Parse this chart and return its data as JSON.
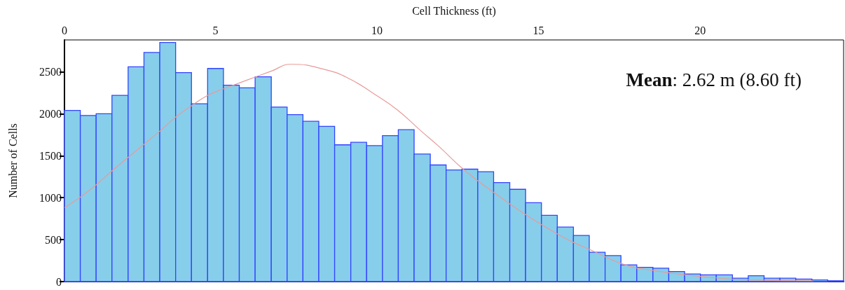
{
  "chart_data": {
    "type": "histogram",
    "xlabel": "Cell Thickness (ft)",
    "ylabel": "Number of Cells",
    "annotations": [
      "Mean: 2.62 m (8.60 ft)"
    ],
    "bins": [
      0.33,
      0.82,
      1.31,
      1.8,
      2.3,
      2.79,
      3.28,
      3.77,
      4.26,
      4.76,
      5.25,
      5.74,
      6.23,
      6.73,
      7.22,
      7.71,
      8.2,
      8.69,
      9.19,
      9.68,
      10.17,
      10.66,
      11.15,
      11.65,
      12.14,
      12.63,
      13.12,
      13.61,
      14.11,
      14.6,
      15.09,
      15.58,
      16.08,
      16.57,
      17.06,
      17.55,
      18.04,
      18.54,
      19.03,
      19.52,
      20.01,
      20.5,
      21.0,
      21.49,
      21.98,
      22.47,
      22.96,
      23.46,
      23.95,
      24.44
    ],
    "series": [
      {
        "color": "#87ceeb",
        "values": [
          2040,
          1980,
          2000,
          2220,
          2560,
          2730,
          2850,
          2490,
          2120,
          2540,
          2340,
          2310,
          2440,
          2080,
          1990,
          1910,
          1850,
          1630,
          1660,
          1620,
          1740,
          1810,
          1520,
          1390,
          1330,
          1340,
          1310,
          1180,
          1100,
          940,
          790,
          650,
          550,
          350,
          310,
          200,
          170,
          160,
          120,
          90,
          80,
          80,
          40,
          70,
          40,
          40,
          30,
          20,
          10
        ]
      },
      {
        "type": "line",
        "color": "#e89a9a",
        "x": [
          0.33,
          0.83,
          1.33,
          1.83,
          2.3,
          3.3,
          3.8,
          4.28,
          4.77,
          5.27,
          5.76,
          6.25,
          6.74,
          7.34,
          8.46,
          9.18,
          9.9,
          10.62,
          11.35,
          11.92,
          12.67,
          13.66,
          14.63,
          15.62,
          16.12,
          16.6,
          17.6,
          18.58,
          20.07,
          21.53,
          23.5
        ],
        "values": [
          880,
          1010,
          1160,
          1330,
          1480,
          1800,
          1970,
          2100,
          2220,
          2300,
          2370,
          2440,
          2510,
          2590,
          2520,
          2410,
          2240,
          2050,
          1800,
          1610,
          1340,
          1050,
          790,
          560,
          460,
          380,
          210,
          130,
          60,
          20,
          10
        ]
      }
    ],
    "xlim": [
      0.33,
      24.44
    ],
    "xticks": [
      {
        "value": 0.33,
        "label": "0"
      },
      5,
      10,
      15,
      20
    ],
    "ylim": [
      0,
      2880
    ],
    "yticks": [
      0,
      500,
      1000,
      1500,
      2000,
      2500
    ],
    "grid": false
  }
}
